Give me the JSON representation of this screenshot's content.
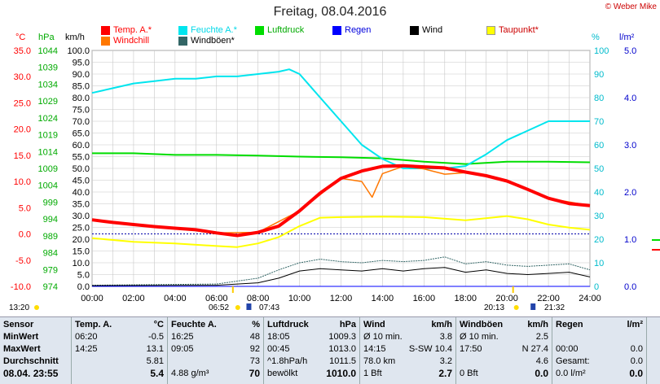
{
  "header": {
    "title": "Freitag, 08.04.2016",
    "copyright": "© Weber Mike"
  },
  "legend": [
    {
      "label": "Temp. A.*",
      "color": "#ff0000"
    },
    {
      "label": "Feuchte A.*",
      "color": "#00e5ee"
    },
    {
      "label": "Luftdruck",
      "color": "#00dd00"
    },
    {
      "label": "Regen",
      "color": "#0000ff"
    },
    {
      "label": "Wind",
      "color": "#000000"
    },
    {
      "label": "Taupunkt*",
      "color": "#ffff00"
    },
    {
      "label": "Windchill",
      "color": "#ff7700"
    },
    {
      "label": "Windböen*",
      "color": "#336666"
    }
  ],
  "units": {
    "temp": "°C",
    "press": "hPa",
    "wind": "km/h",
    "hum": "%",
    "rain": "l/m²"
  },
  "axes": {
    "temp_ticks": [
      "35.0",
      "30.0",
      "25.0",
      "20.0",
      "15.0",
      "10.0",
      "5.0",
      "0.0",
      "-5.0",
      "-10.0"
    ],
    "press_ticks": [
      "1044",
      "1039",
      "1034",
      "1029",
      "1024",
      "1019",
      "1014",
      "1009",
      "1004",
      "999",
      "994",
      "989",
      "984",
      "979",
      "974"
    ],
    "wind_ticks": [
      "100.0",
      "95.0",
      "90.0",
      "85.0",
      "80.0",
      "75.0",
      "70.0",
      "65.0",
      "60.0",
      "55.0",
      "50.0",
      "45.0",
      "40.0",
      "35.0",
      "30.0",
      "25.0",
      "20.0",
      "15.0",
      "10.0",
      "5.0",
      "0.0"
    ],
    "hum_ticks": [
      "100",
      "90",
      "80",
      "70",
      "60",
      "50",
      "40",
      "30",
      "20",
      "10",
      "0"
    ],
    "rain_ticks": [
      "5.0",
      "4.0",
      "3.0",
      "2.0",
      "1.0",
      "0.0"
    ],
    "time_ticks": [
      "00:00",
      "02:00",
      "04:00",
      "06:00",
      "08:00",
      "10:00",
      "12:00",
      "14:00",
      "16:00",
      "18:00",
      "20:00",
      "22:00",
      "24:00"
    ]
  },
  "sun": {
    "left_time": "13:20",
    "sunrise": "06:52",
    "sunrise2": "07:43",
    "sunset": "20:13",
    "sunset2": "21:32"
  },
  "chart_data": {
    "type": "line",
    "x_unit": "hour",
    "xlim": [
      0,
      24
    ],
    "series": [
      {
        "name": "Temp. A.*",
        "axis": "°C",
        "ylim": [
          -10,
          35
        ],
        "color": "#ff0000",
        "x": [
          0,
          1,
          2,
          3,
          4,
          5,
          6,
          7,
          8,
          9,
          10,
          11,
          12,
          13,
          14,
          15,
          16,
          17,
          18,
          19,
          20,
          21,
          22,
          23,
          24
        ],
        "values": [
          2.7,
          2.2,
          1.8,
          1.4,
          1.1,
          0.8,
          0.2,
          -0.3,
          0.3,
          1.5,
          4.4,
          7.8,
          10.6,
          12.0,
          12.9,
          13.0,
          12.8,
          12.6,
          11.8,
          11.1,
          10.1,
          8.5,
          6.8,
          5.8,
          5.4
        ]
      },
      {
        "name": "Feuchte A.*",
        "axis": "%",
        "ylim": [
          0,
          100
        ],
        "color": "#00e5ee",
        "x": [
          0,
          1,
          2,
          3,
          4,
          5,
          6,
          7,
          8,
          9,
          9.5,
          10,
          11,
          12,
          13,
          14,
          15,
          16,
          17,
          18,
          19,
          20,
          21,
          22,
          23,
          24
        ],
        "values": [
          82,
          84,
          86,
          87,
          88,
          88,
          89,
          89,
          90,
          91,
          92,
          90,
          80,
          70,
          60,
          54,
          50,
          50,
          50,
          51,
          56,
          62,
          66,
          70,
          70,
          70
        ]
      },
      {
        "name": "Luftdruck",
        "axis": "hPa",
        "ylim": [
          974,
          1044
        ],
        "color": "#00dd00",
        "x": [
          0,
          2,
          4,
          6,
          8,
          10,
          12,
          14,
          16,
          18,
          20,
          22,
          24
        ],
        "values": [
          1013.5,
          1013.5,
          1013.0,
          1013.0,
          1012.8,
          1012.5,
          1012.3,
          1012.0,
          1011.0,
          1010.3,
          1011.0,
          1011.0,
          1010.8
        ]
      },
      {
        "name": "Taupunkt*",
        "axis": "°C",
        "ylim": [
          -10,
          35
        ],
        "color": "#ffff00",
        "x": [
          0,
          2,
          4,
          6,
          7,
          8,
          9,
          10,
          11,
          12,
          14,
          16,
          18,
          20,
          21,
          22,
          23,
          24
        ],
        "values": [
          -0.8,
          -1.5,
          -1.8,
          -2.3,
          -2.5,
          -1.8,
          -0.6,
          1.5,
          3.1,
          3.2,
          3.3,
          3.2,
          2.6,
          3.4,
          2.8,
          1.8,
          1.2,
          0.8
        ]
      },
      {
        "name": "Windchill",
        "axis": "°C",
        "ylim": [
          -10,
          35
        ],
        "color": "#ff7700",
        "x": [
          0,
          4,
          6,
          8,
          10,
          12,
          13,
          13.5,
          14,
          15,
          16,
          17,
          18,
          19,
          20,
          22,
          24
        ],
        "values": [
          2.7,
          1.1,
          0.2,
          0.3,
          4.4,
          10.6,
          10.0,
          7.0,
          11.5,
          12.9,
          12.4,
          11.4,
          11.7,
          11.1,
          10.1,
          6.8,
          5.4
        ]
      },
      {
        "name": "Wind",
        "axis": "km/h",
        "ylim": [
          0,
          100
        ],
        "color": "#000000",
        "x": [
          0,
          6,
          8,
          9,
          10,
          11,
          12,
          13,
          14,
          15,
          16,
          17,
          18,
          19,
          20,
          21,
          22,
          23,
          24
        ],
        "values": [
          0.3,
          0.5,
          1.5,
          3.5,
          6.5,
          7.5,
          7.0,
          6.5,
          7.5,
          6.5,
          7.5,
          8.0,
          6.0,
          7.0,
          5.5,
          5.0,
          5.5,
          6.0,
          4.0
        ]
      },
      {
        "name": "Windböen*",
        "axis": "km/h",
        "ylim": [
          0,
          100
        ],
        "color": "#336666",
        "x": [
          0,
          6,
          8,
          9,
          10,
          11,
          12,
          13,
          14,
          15,
          16,
          17,
          18,
          19,
          20,
          21,
          22,
          23,
          24
        ],
        "values": [
          0.5,
          1.0,
          3.5,
          7.0,
          10.0,
          11.5,
          10.5,
          10.0,
          11.0,
          10.5,
          11.0,
          12.5,
          9.5,
          10.5,
          9.0,
          8.5,
          9.0,
          9.5,
          7.0
        ]
      },
      {
        "name": "Regen",
        "axis": "l/m²",
        "ylim": [
          0,
          5
        ],
        "color": "#0000ff",
        "x": [
          0,
          24
        ],
        "values": [
          0.0,
          0.0
        ]
      }
    ],
    "reference_lines": [
      {
        "axis": "°C",
        "value": 0.0,
        "style": "dotted",
        "color": "#0000aa"
      }
    ]
  },
  "stats": {
    "sensor": {
      "header": "Sensor",
      "rows": [
        "MinWert",
        "MaxWert",
        "Durchschnitt"
      ],
      "footer": "08.04. 23:55"
    },
    "temp": {
      "header": "Temp. A.",
      "unit": "°C",
      "rows": [
        [
          "06:20",
          "-0.5"
        ],
        [
          "14:25",
          "13.1"
        ],
        [
          "",
          "5.81"
        ]
      ],
      "footer": [
        "",
        "5.4"
      ]
    },
    "hum": {
      "header": "Feuchte A.",
      "unit": "%",
      "rows": [
        [
          "16:25",
          "48"
        ],
        [
          "09:05",
          "92"
        ],
        [
          "",
          "73"
        ]
      ],
      "footer": [
        "4.88 g/m³",
        "70"
      ]
    },
    "press": {
      "header": "Luftdruck",
      "unit": "hPa",
      "rows": [
        [
          "18:05",
          "1009.3"
        ],
        [
          "00:45",
          "1013.0"
        ],
        [
          "^1.8hPa/h",
          "1011.5"
        ]
      ],
      "footer": [
        "bewölkt",
        "1010.0"
      ]
    },
    "wind": {
      "header": "Wind",
      "unit": "km/h",
      "rows": [
        [
          "Ø 10 min.",
          "3.8"
        ],
        [
          "14:15",
          "S-SW 10.4"
        ],
        [
          "78.0 km",
          "3.2"
        ]
      ],
      "footer": [
        "1 Bft",
        "2.7"
      ]
    },
    "gust": {
      "header": "Windböen",
      "unit": "km/h",
      "rows": [
        [
          "Ø 10 min.",
          "2.5"
        ],
        [
          "17:50",
          "N 27.4"
        ],
        [
          "",
          "4.6"
        ]
      ],
      "footer": [
        "0 Bft",
        "0.0"
      ]
    },
    "rain": {
      "header": "Regen",
      "unit": "l/m²",
      "rows": [
        [
          "",
          ""
        ],
        [
          "00:00",
          "0.0"
        ],
        [
          "Gesamt:",
          "0.0"
        ]
      ],
      "footer": [
        "0.0 l/m²",
        "0.0"
      ]
    }
  }
}
